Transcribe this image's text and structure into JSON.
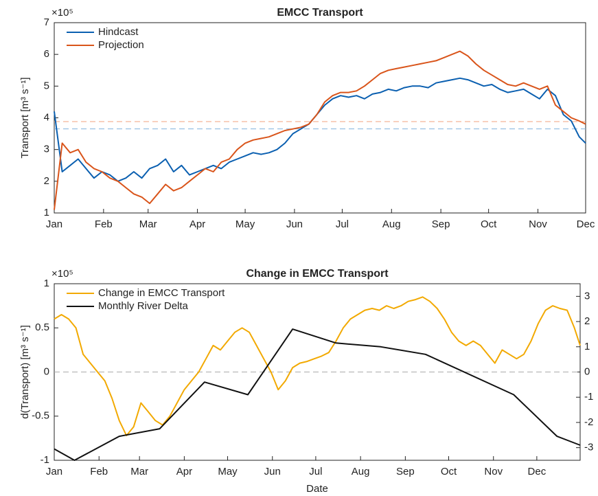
{
  "chart_data": [
    {
      "type": "line",
      "title": "EMCC Transport",
      "ylabel": "Transport [m³ s⁻¹]",
      "y_exponent_label": "×10⁵",
      "xlim": [
        1,
        335
      ],
      "ylim": [
        1,
        7
      ],
      "xticks": [
        {
          "value": 1,
          "label": "Jan"
        },
        {
          "value": 32,
          "label": "Feb"
        },
        {
          "value": 60,
          "label": "Mar"
        },
        {
          "value": 91,
          "label": "Apr"
        },
        {
          "value": 121,
          "label": "May"
        },
        {
          "value": 152,
          "label": "Jun"
        },
        {
          "value": 182,
          "label": "Jul"
        },
        {
          "value": 213,
          "label": "Aug"
        },
        {
          "value": 244,
          "label": "Sep"
        },
        {
          "value": 274,
          "label": "Oct"
        },
        {
          "value": 305,
          "label": "Nov"
        },
        {
          "value": 335,
          "label": "Dec"
        }
      ],
      "yticks": [
        1,
        2,
        3,
        4,
        5,
        6,
        7
      ],
      "legend": "upper left",
      "reference_lines": [
        {
          "value": 3.88,
          "color": "#f0a07c"
        },
        {
          "value": 3.65,
          "color": "#7fb0dd"
        }
      ],
      "series": [
        {
          "name": "Hindcast",
          "color": "#0a5fb0",
          "x": [
            1,
            6,
            11,
            16,
            21,
            26,
            31,
            36,
            41,
            46,
            51,
            56,
            61,
            66,
            71,
            76,
            81,
            86,
            91,
            96,
            101,
            106,
            111,
            116,
            121,
            126,
            131,
            136,
            141,
            146,
            151,
            156,
            161,
            166,
            171,
            176,
            181,
            186,
            191,
            196,
            201,
            206,
            211,
            216,
            221,
            226,
            231,
            236,
            241,
            246,
            251,
            256,
            261,
            266,
            271,
            276,
            281,
            286,
            291,
            296,
            301,
            306,
            311,
            316,
            321,
            326,
            331,
            335
          ],
          "values": [
            4.2,
            2.3,
            2.5,
            2.7,
            2.4,
            2.1,
            2.3,
            2.2,
            2.0,
            2.1,
            2.3,
            2.1,
            2.4,
            2.5,
            2.7,
            2.3,
            2.5,
            2.2,
            2.3,
            2.4,
            2.5,
            2.4,
            2.6,
            2.7,
            2.8,
            2.9,
            2.85,
            2.9,
            3.0,
            3.2,
            3.5,
            3.65,
            3.8,
            4.1,
            4.4,
            4.6,
            4.7,
            4.65,
            4.7,
            4.6,
            4.75,
            4.8,
            4.9,
            4.85,
            4.95,
            5.0,
            5.0,
            4.95,
            5.1,
            5.15,
            5.2,
            5.25,
            5.2,
            5.1,
            5.0,
            5.05,
            4.9,
            4.8,
            4.85,
            4.9,
            4.75,
            4.6,
            4.9,
            4.7,
            4.1,
            3.9,
            3.4,
            3.2
          ]
        },
        {
          "name": "Projection",
          "color": "#d9541a",
          "x": [
            1,
            6,
            11,
            16,
            21,
            26,
            31,
            36,
            41,
            46,
            51,
            56,
            61,
            66,
            71,
            76,
            81,
            86,
            91,
            96,
            101,
            106,
            111,
            116,
            121,
            126,
            131,
            136,
            141,
            146,
            151,
            156,
            161,
            166,
            171,
            176,
            181,
            186,
            191,
            196,
            201,
            206,
            211,
            216,
            221,
            226,
            231,
            236,
            241,
            246,
            251,
            256,
            261,
            266,
            271,
            276,
            281,
            286,
            291,
            296,
            301,
            306,
            311,
            316,
            321,
            326,
            331,
            335
          ],
          "values": [
            1.1,
            3.2,
            2.9,
            3.0,
            2.6,
            2.4,
            2.3,
            2.1,
            2.0,
            1.8,
            1.6,
            1.5,
            1.3,
            1.6,
            1.9,
            1.7,
            1.8,
            2.0,
            2.2,
            2.4,
            2.3,
            2.6,
            2.7,
            3.0,
            3.2,
            3.3,
            3.35,
            3.4,
            3.5,
            3.6,
            3.65,
            3.7,
            3.8,
            4.1,
            4.5,
            4.7,
            4.8,
            4.8,
            4.85,
            5.0,
            5.2,
            5.4,
            5.5,
            5.55,
            5.6,
            5.65,
            5.7,
            5.75,
            5.8,
            5.9,
            6.0,
            6.1,
            5.95,
            5.7,
            5.5,
            5.35,
            5.2,
            5.05,
            5.0,
            5.1,
            5.0,
            4.9,
            5.0,
            4.4,
            4.2,
            4.0,
            3.9,
            3.8
          ]
        }
      ]
    },
    {
      "type": "line",
      "title": "Change in EMCC Transport",
      "ylabel": "d(Transport) [m³ s⁻¹]",
      "xlabel": "Date",
      "y_exponent_label": "×10⁵",
      "xlim": [
        1,
        365
      ],
      "ylim": [
        -1,
        1
      ],
      "y2lim": [
        -3.5,
        3.5
      ],
      "xticks": [
        {
          "value": 1,
          "label": "Jan"
        },
        {
          "value": 32,
          "label": "Feb"
        },
        {
          "value": 60,
          "label": "Mar"
        },
        {
          "value": 91,
          "label": "Apr"
        },
        {
          "value": 121,
          "label": "May"
        },
        {
          "value": 152,
          "label": "Jun"
        },
        {
          "value": 182,
          "label": "Jul"
        },
        {
          "value": 213,
          "label": "Aug"
        },
        {
          "value": 244,
          "label": "Sep"
        },
        {
          "value": 274,
          "label": "Oct"
        },
        {
          "value": 305,
          "label": "Nov"
        },
        {
          "value": 335,
          "label": "Dec"
        }
      ],
      "yticks": [
        -1,
        -0.5,
        0,
        0.5,
        1
      ],
      "y2ticks": [
        -3,
        -2,
        -1,
        0,
        1,
        2,
        3
      ],
      "legend": "upper left",
      "reference_lines": [
        {
          "value": 0,
          "color": "#aaaaaa"
        }
      ],
      "series": [
        {
          "name": "Change in EMCC Transport",
          "color": "#f2a900",
          "x": [
            1,
            6,
            11,
            16,
            21,
            26,
            31,
            36,
            41,
            46,
            51,
            56,
            61,
            66,
            71,
            76,
            81,
            86,
            91,
            96,
            101,
            106,
            111,
            116,
            121,
            126,
            131,
            136,
            141,
            146,
            151,
            156,
            161,
            166,
            171,
            176,
            181,
            186,
            191,
            196,
            201,
            206,
            211,
            216,
            221,
            226,
            231,
            236,
            241,
            246,
            251,
            256,
            261,
            266,
            271,
            276,
            281,
            286,
            291,
            296,
            301,
            306,
            311,
            316,
            321,
            326,
            331,
            336,
            341,
            346,
            351,
            356,
            361,
            365
          ],
          "values": [
            0.6,
            0.65,
            0.6,
            0.5,
            0.2,
            0.1,
            0.0,
            -0.1,
            -0.3,
            -0.55,
            -0.72,
            -0.62,
            -0.35,
            -0.45,
            -0.55,
            -0.6,
            -0.5,
            -0.35,
            -0.2,
            -0.1,
            0.0,
            0.15,
            0.3,
            0.25,
            0.35,
            0.45,
            0.5,
            0.45,
            0.3,
            0.15,
            0.0,
            -0.2,
            -0.1,
            0.05,
            0.1,
            0.12,
            0.15,
            0.18,
            0.22,
            0.35,
            0.5,
            0.6,
            0.65,
            0.7,
            0.72,
            0.7,
            0.75,
            0.72,
            0.75,
            0.8,
            0.82,
            0.85,
            0.8,
            0.72,
            0.6,
            0.45,
            0.35,
            0.3,
            0.35,
            0.3,
            0.2,
            0.1,
            0.25,
            0.2,
            0.15,
            0.2,
            0.35,
            0.55,
            0.7,
            0.75,
            0.72,
            0.7,
            0.5,
            0.3
          ]
        },
        {
          "name": "Monthly River Delta",
          "color": "#111111",
          "axis": "y2",
          "x": [
            1,
            15,
            46,
            74,
            105,
            135,
            166,
            196,
            227,
            258,
            319,
            349,
            365
          ],
          "values": [
            -3.05,
            -3.5,
            -2.55,
            -2.25,
            -0.4,
            -0.9,
            1.7,
            1.15,
            1.0,
            0.7,
            -0.9,
            -2.55,
            -2.9
          ]
        }
      ]
    }
  ]
}
